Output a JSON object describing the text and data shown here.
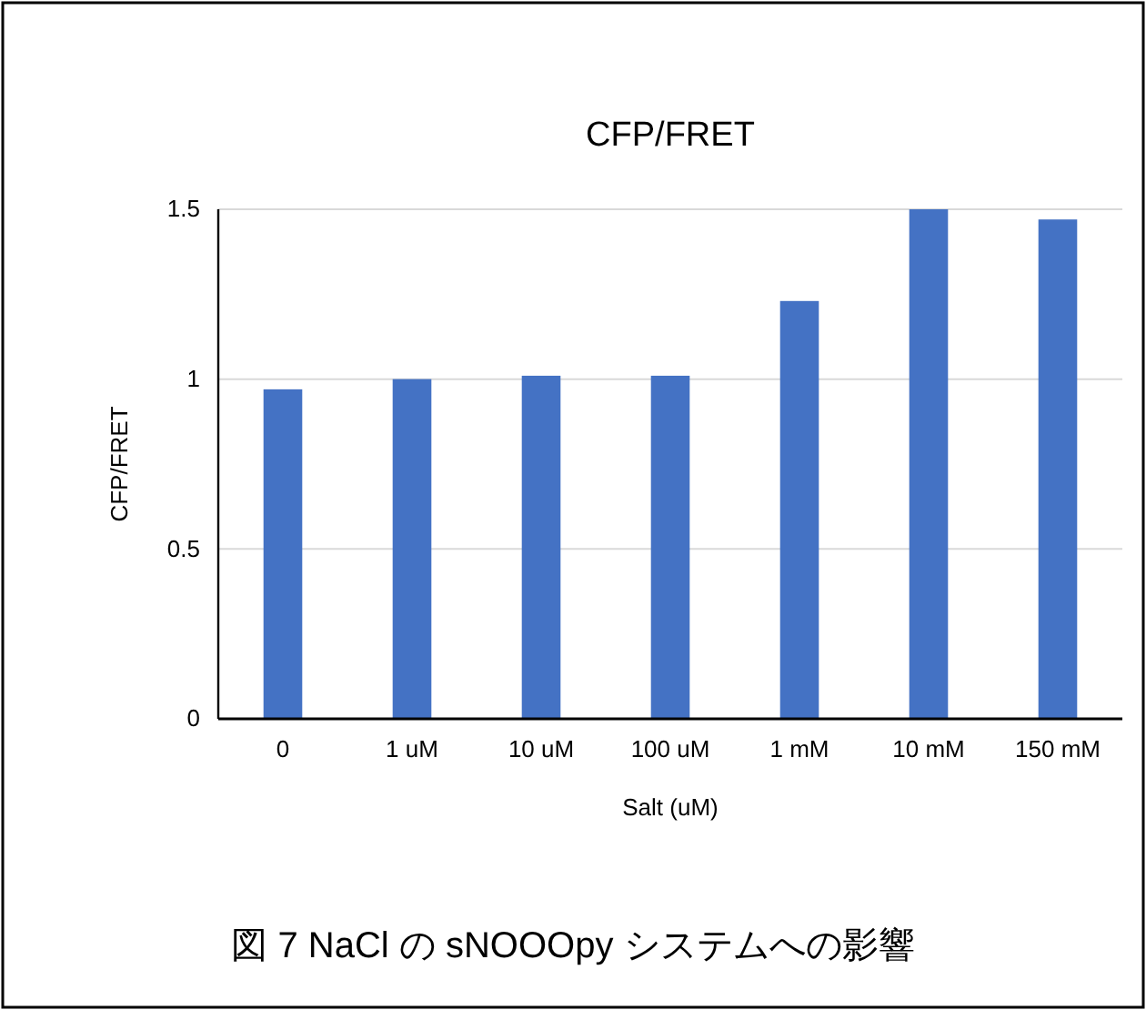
{
  "chart_data": {
    "type": "bar",
    "title": "CFP/FRET",
    "xlabel": "Salt (uM)",
    "ylabel": "CFP/FRET",
    "categories": [
      "0",
      "1 uM",
      "10 uM",
      "100 uM",
      "1 mM",
      "10 mM",
      "150 mM"
    ],
    "values": [
      0.97,
      1.0,
      1.01,
      1.01,
      1.23,
      1.5,
      1.47
    ],
    "color": "#4472c4",
    "ylim": [
      0,
      1.5
    ],
    "yticks": [
      0,
      0.5,
      1,
      1.5
    ],
    "grid": "y",
    "annotations": [
      "図 7 NaCl の sNOOOpy システムへの影響"
    ]
  }
}
